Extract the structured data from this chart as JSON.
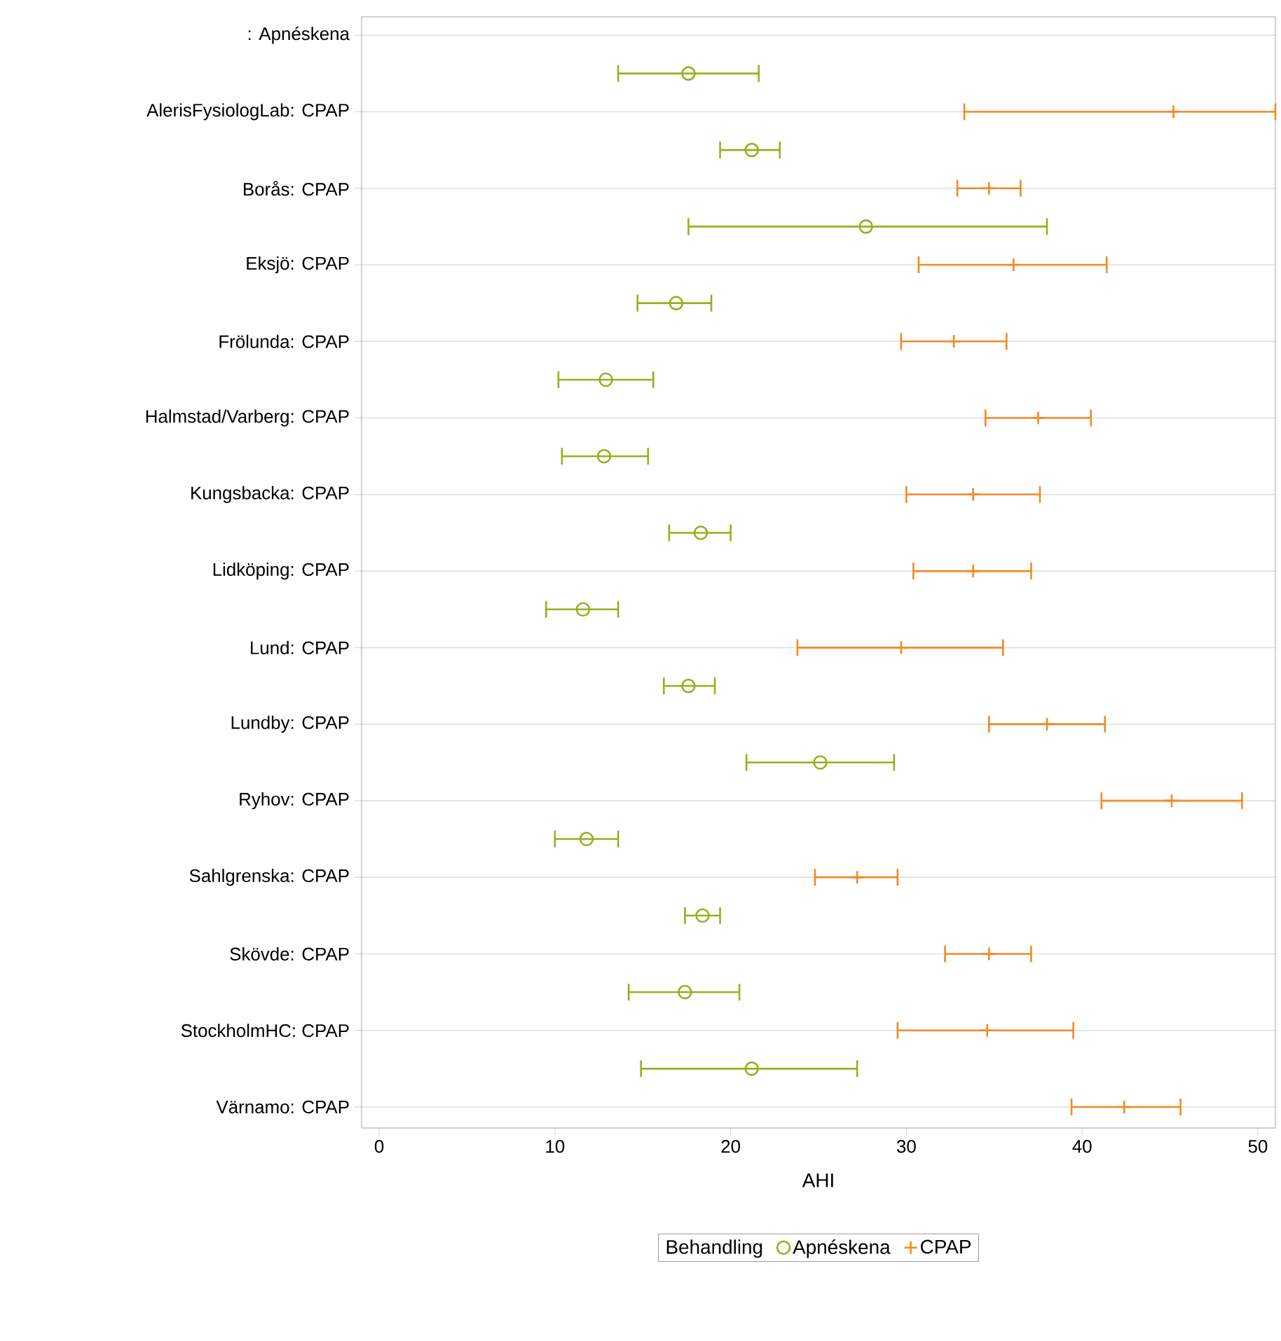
{
  "chart_data": {
    "type": "scatter",
    "orientation": "horizontal",
    "xlabel": "AHI",
    "legend_title": "Behandling",
    "legend": "bottom",
    "grid": "y",
    "categories": [
      ": Apnéskena",
      null,
      "AlerisFysiologLab: CPAP",
      null,
      "Borås: CPAP",
      null,
      "Eksjö: CPAP",
      null,
      "Frölunda: CPAP",
      null,
      "Halmstad/Varberg: CPAP",
      null,
      "Kungsbacka: CPAP",
      null,
      "Lidköping: CPAP",
      null,
      "Lund: CPAP",
      null,
      "Lundby: CPAP",
      null,
      "Ryhov: CPAP",
      null,
      "Sahlgrenska: CPAP",
      null,
      "Skövde: CPAP",
      null,
      "StockholmHC: CPAP",
      null,
      "Värnamo: CPAP"
    ],
    "xlim": [
      -1,
      51
    ],
    "xticks": [
      0,
      10,
      20,
      30,
      40,
      50
    ],
    "series": [
      {
        "name": "Apnéskena",
        "color": "#9aae1c",
        "marker": "circle",
        "values": [
          null,
          17.6,
          null,
          21.2,
          null,
          27.7,
          null,
          16.9,
          null,
          12.9,
          null,
          12.8,
          null,
          18.3,
          null,
          11.6,
          null,
          17.6,
          null,
          25.1,
          null,
          11.8,
          null,
          18.4,
          null,
          17.4,
          null,
          21.2,
          null
        ],
        "errors": [
          null,
          [
            13.6,
            21.6
          ],
          null,
          [
            19.4,
            22.8
          ],
          null,
          [
            17.6,
            38.0
          ],
          null,
          [
            14.7,
            18.9
          ],
          null,
          [
            10.2,
            15.6
          ],
          null,
          [
            10.4,
            15.3
          ],
          null,
          [
            16.5,
            20.0
          ],
          null,
          [
            9.5,
            13.6
          ],
          null,
          [
            16.2,
            19.1
          ],
          null,
          [
            20.9,
            29.3
          ],
          null,
          [
            10.0,
            13.6
          ],
          null,
          [
            17.4,
            19.4
          ],
          null,
          [
            14.2,
            20.5
          ],
          null,
          [
            14.9,
            27.2
          ],
          null
        ]
      },
      {
        "name": "CPAP",
        "color": "#f08a22",
        "marker": "cross",
        "values": [
          null,
          null,
          45.2,
          null,
          34.7,
          null,
          36.1,
          null,
          32.7,
          null,
          37.5,
          null,
          33.8,
          null,
          33.8,
          null,
          29.7,
          null,
          38.0,
          null,
          45.1,
          null,
          27.2,
          null,
          34.7,
          null,
          34.6,
          null,
          42.4
        ],
        "errors": [
          null,
          null,
          [
            33.3,
            51
          ],
          null,
          [
            32.9,
            36.5
          ],
          null,
          [
            30.7,
            41.4
          ],
          null,
          [
            29.7,
            35.7
          ],
          null,
          [
            34.5,
            40.5
          ],
          null,
          [
            30.0,
            37.6
          ],
          null,
          [
            30.4,
            37.1
          ],
          null,
          [
            23.8,
            35.5
          ],
          null,
          [
            34.7,
            41.3
          ],
          null,
          [
            41.1,
            49.1
          ],
          null,
          [
            24.8,
            29.5
          ],
          null,
          [
            32.2,
            37.1
          ],
          null,
          [
            29.5,
            39.5
          ],
          null,
          [
            39.4,
            45.6
          ]
        ]
      }
    ]
  }
}
